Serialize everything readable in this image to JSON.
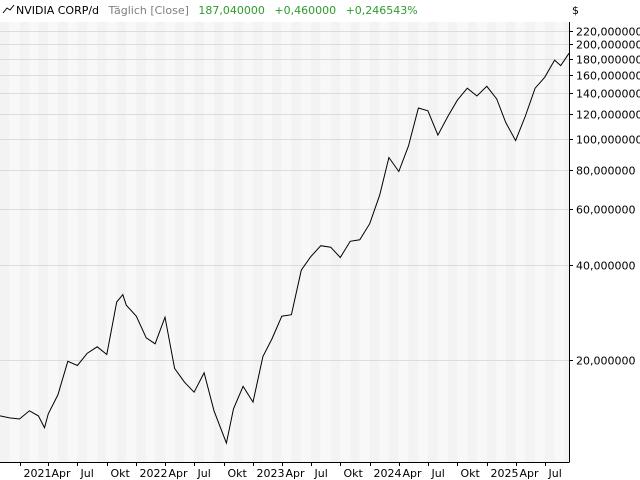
{
  "header": {
    "symbol": "NVIDIA CORP/d",
    "period": "Täglich [Close]",
    "price": "187,040000",
    "change": "+0,460000",
    "change_pct": "+0,246543%",
    "currency": "$"
  },
  "colors": {
    "background": "#ffffff",
    "band_a": "#f3f3f3",
    "band_b": "#f8f8f8",
    "grid": "#dcdcdc",
    "line": "#000000",
    "header_muted": "#7f7f7f",
    "header_positive": "#2e9b2e"
  },
  "chart_data": {
    "type": "line",
    "title": "NVIDIA CORP/d",
    "y_scale": "log",
    "ylim": [
      9.5,
      235
    ],
    "y_ticks": [
      20,
      40,
      60,
      80,
      100,
      120,
      140,
      160,
      180,
      200,
      220
    ],
    "y_tick_labels": [
      "20,000000",
      "40,000000",
      "60,000000",
      "80,000000",
      "100,000000",
      "120,000000",
      "140,000000",
      "160,000000",
      "180,000000",
      "200,000000",
      "220,000000"
    ],
    "x_range": [
      "2020-11-01",
      "2025-09-15"
    ],
    "x_ticks": [
      {
        "date": "2021-01-01",
        "label": "2021"
      },
      {
        "date": "2021-04-01",
        "label": "Apr"
      },
      {
        "date": "2021-07-01",
        "label": "Jul"
      },
      {
        "date": "2021-10-01",
        "label": "Okt"
      },
      {
        "date": "2022-01-01",
        "label": "2022"
      },
      {
        "date": "2022-04-01",
        "label": "Apr"
      },
      {
        "date": "2022-07-01",
        "label": "Jul"
      },
      {
        "date": "2022-10-01",
        "label": "Okt"
      },
      {
        "date": "2023-01-01",
        "label": "2023"
      },
      {
        "date": "2023-04-01",
        "label": "Apr"
      },
      {
        "date": "2023-07-01",
        "label": "Jul"
      },
      {
        "date": "2023-10-01",
        "label": "Okt"
      },
      {
        "date": "2024-01-01",
        "label": "2024"
      },
      {
        "date": "2024-04-01",
        "label": "Apr"
      },
      {
        "date": "2024-07-01",
        "label": "Jul"
      },
      {
        "date": "2024-10-01",
        "label": "Okt"
      },
      {
        "date": "2025-01-01",
        "label": "2025"
      },
      {
        "date": "2025-04-01",
        "label": "Apr"
      },
      {
        "date": "2025-07-01",
        "label": "Jul"
      }
    ],
    "series": [
      {
        "values": [
          [
            "2020-11-01",
            13.3
          ],
          [
            "2020-12-01",
            13.1
          ],
          [
            "2021-01-01",
            13.0
          ],
          [
            "2021-02-01",
            13.8
          ],
          [
            "2021-03-01",
            13.3
          ],
          [
            "2021-03-20",
            12.2
          ],
          [
            "2021-04-01",
            13.5
          ],
          [
            "2021-05-01",
            15.5
          ],
          [
            "2021-06-01",
            19.8
          ],
          [
            "2021-07-01",
            19.2
          ],
          [
            "2021-08-01",
            21.0
          ],
          [
            "2021-09-01",
            22.0
          ],
          [
            "2021-10-01",
            20.8
          ],
          [
            "2021-11-01",
            30.5
          ],
          [
            "2021-11-20",
            32.2
          ],
          [
            "2021-12-01",
            29.8
          ],
          [
            "2022-01-01",
            27.5
          ],
          [
            "2022-02-01",
            23.5
          ],
          [
            "2022-03-01",
            22.5
          ],
          [
            "2022-04-01",
            27.3
          ],
          [
            "2022-05-01",
            18.8
          ],
          [
            "2022-06-01",
            17.0
          ],
          [
            "2022-07-01",
            15.8
          ],
          [
            "2022-08-01",
            18.2
          ],
          [
            "2022-09-01",
            13.8
          ],
          [
            "2022-10-01",
            11.5
          ],
          [
            "2022-10-10",
            10.9
          ],
          [
            "2022-11-01",
            14.0
          ],
          [
            "2022-12-01",
            16.5
          ],
          [
            "2023-01-01",
            14.7
          ],
          [
            "2023-02-01",
            20.5
          ],
          [
            "2023-03-01",
            23.3
          ],
          [
            "2023-04-01",
            27.5
          ],
          [
            "2023-05-01",
            27.8
          ],
          [
            "2023-06-01",
            38.5
          ],
          [
            "2023-07-01",
            42.5
          ],
          [
            "2023-08-01",
            46.0
          ],
          [
            "2023-09-01",
            45.5
          ],
          [
            "2023-10-01",
            42.2
          ],
          [
            "2023-11-01",
            47.5
          ],
          [
            "2023-12-01",
            48.0
          ],
          [
            "2024-01-01",
            54.0
          ],
          [
            "2024-02-01",
            66.5
          ],
          [
            "2024-03-01",
            87.5
          ],
          [
            "2024-04-01",
            79.0
          ],
          [
            "2024-05-01",
            95.0
          ],
          [
            "2024-06-01",
            125.5
          ],
          [
            "2024-07-01",
            123.0
          ],
          [
            "2024-08-01",
            103.0
          ],
          [
            "2024-09-01",
            118.0
          ],
          [
            "2024-10-01",
            133.0
          ],
          [
            "2024-11-01",
            145.0
          ],
          [
            "2024-12-01",
            137.0
          ],
          [
            "2025-01-01",
            147.0
          ],
          [
            "2025-02-01",
            134.0
          ],
          [
            "2025-03-01",
            113.0
          ],
          [
            "2025-04-01",
            99.0
          ],
          [
            "2025-05-01",
            118.0
          ],
          [
            "2025-06-01",
            145.0
          ],
          [
            "2025-07-01",
            157.0
          ],
          [
            "2025-08-01",
            178.0
          ],
          [
            "2025-08-20",
            171.0
          ],
          [
            "2025-09-15",
            187.0
          ]
        ]
      }
    ]
  }
}
